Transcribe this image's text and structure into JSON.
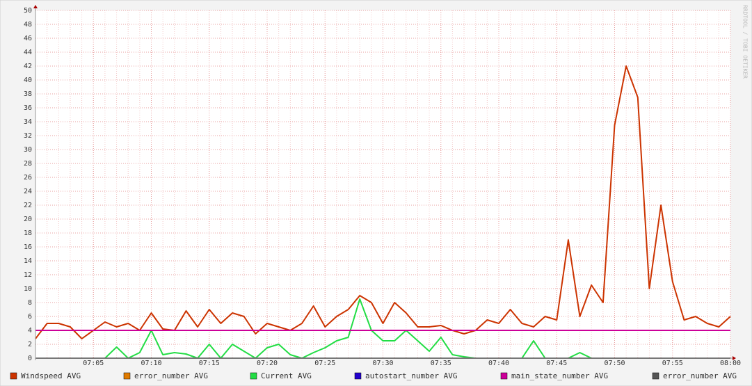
{
  "chart_data": {
    "type": "line",
    "watermark": "RRDTOOL / TOBI OETIKER",
    "x": [
      "07:00",
      "07:01",
      "07:02",
      "07:03",
      "07:04",
      "07:05",
      "07:06",
      "07:07",
      "07:08",
      "07:09",
      "07:10",
      "07:11",
      "07:12",
      "07:13",
      "07:14",
      "07:15",
      "07:16",
      "07:17",
      "07:18",
      "07:19",
      "07:20",
      "07:21",
      "07:22",
      "07:23",
      "07:24",
      "07:25",
      "07:26",
      "07:27",
      "07:28",
      "07:29",
      "07:30",
      "07:31",
      "07:32",
      "07:33",
      "07:34",
      "07:35",
      "07:36",
      "07:37",
      "07:38",
      "07:39",
      "07:40",
      "07:41",
      "07:42",
      "07:43",
      "07:44",
      "07:45",
      "07:46",
      "07:47",
      "07:48",
      "07:49",
      "07:50",
      "07:51",
      "07:52",
      "07:53",
      "07:54",
      "07:55",
      "07:56",
      "07:57",
      "07:58",
      "07:59",
      "08:00"
    ],
    "xlim": [
      "07:00",
      "08:00"
    ],
    "xticks": [
      "07:05",
      "07:10",
      "07:15",
      "07:20",
      "07:25",
      "07:30",
      "07:35",
      "07:40",
      "07:45",
      "07:50",
      "07:55",
      "08:00"
    ],
    "ylim": [
      0,
      50
    ],
    "yticks": [
      0,
      2,
      4,
      6,
      8,
      10,
      12,
      14,
      16,
      18,
      20,
      22,
      24,
      26,
      28,
      30,
      32,
      34,
      36,
      38,
      40,
      42,
      44,
      46,
      48,
      50
    ],
    "grid": true,
    "series": [
      {
        "name": "Windspeed AVG",
        "color": "#cc3300",
        "values": [
          2.8,
          5,
          5,
          4.5,
          2.8,
          4,
          5.2,
          4.5,
          5,
          4,
          6.5,
          4.2,
          4,
          6.8,
          4.5,
          7,
          5,
          6.5,
          6,
          3.5,
          5,
          4.5,
          4,
          5,
          7.5,
          4.5,
          6,
          7,
          9,
          8,
          5,
          8,
          6.5,
          4.5,
          4.5,
          4.7,
          4,
          3.5,
          4,
          5.5,
          5,
          7,
          5,
          4.5,
          6,
          5.5,
          17,
          6,
          10.5,
          8,
          33.5,
          42,
          37.5,
          10,
          22,
          11,
          5.5,
          6,
          5,
          4.5,
          6
        ]
      },
      {
        "name": "error_number AVG",
        "color": "#e07b00",
        "values": [
          0,
          0,
          0,
          0,
          0,
          0,
          0,
          0,
          0,
          0,
          0,
          0,
          0,
          0,
          0,
          0,
          0,
          0,
          0,
          0,
          0,
          0,
          0,
          0,
          0,
          0,
          0,
          0,
          0,
          0,
          0,
          0,
          0,
          0,
          0,
          0,
          0,
          0,
          0,
          0,
          0,
          0,
          0,
          0,
          0,
          0,
          0,
          0,
          0,
          0,
          0,
          0,
          0,
          0,
          0,
          0,
          0,
          0,
          0,
          0,
          0
        ]
      },
      {
        "name": "Current AVG",
        "color": "#22dd44",
        "values": [
          0,
          0,
          0,
          0,
          0,
          0,
          0,
          1.6,
          0,
          0.8,
          4,
          0.5,
          0.8,
          0.6,
          0,
          2,
          0,
          2,
          1,
          0,
          1.5,
          2,
          0.5,
          0,
          0.8,
          1.5,
          2.5,
          3,
          8.5,
          4,
          2.5,
          2.5,
          4,
          2.5,
          1,
          3,
          0.5,
          0.2,
          0,
          0,
          0,
          0,
          0,
          2.5,
          0,
          0,
          0,
          0.8,
          0,
          0,
          0,
          0,
          0,
          0,
          0,
          0,
          0,
          0,
          0,
          0,
          0
        ]
      },
      {
        "name": "autostart_number AVG",
        "color": "#2200cc",
        "values": [
          0,
          0,
          0,
          0,
          0,
          0,
          0,
          0,
          0,
          0,
          0,
          0,
          0,
          0,
          0,
          0,
          0,
          0,
          0,
          0,
          0,
          0,
          0,
          0,
          0,
          0,
          0,
          0,
          0,
          0,
          0,
          0,
          0,
          0,
          0,
          0,
          0,
          0,
          0,
          0,
          0,
          0,
          0,
          0,
          0,
          0,
          0,
          0,
          0,
          0,
          0,
          0,
          0,
          0,
          0,
          0,
          0,
          0,
          0,
          0,
          0
        ]
      },
      {
        "name": "main_state_number AVG",
        "color": "#cc0099",
        "values": [
          4,
          4,
          4,
          4,
          4,
          4,
          4,
          4,
          4,
          4,
          4,
          4,
          4,
          4,
          4,
          4,
          4,
          4,
          4,
          4,
          4,
          4,
          4,
          4,
          4,
          4,
          4,
          4,
          4,
          4,
          4,
          4,
          4,
          4,
          4,
          4,
          4,
          4,
          4,
          4,
          4,
          4,
          4,
          4,
          4,
          4,
          4,
          4,
          4,
          4,
          4,
          4,
          4,
          4,
          4,
          4,
          4,
          4,
          4,
          4,
          4
        ]
      },
      {
        "name": "error_number AVG",
        "color": "#555555",
        "values": [
          0,
          0,
          0,
          0,
          0,
          0,
          0,
          0,
          0,
          0,
          0,
          0,
          0,
          0,
          0,
          0,
          0,
          0,
          0,
          0,
          0,
          0,
          0,
          0,
          0,
          0,
          0,
          0,
          0,
          0,
          0,
          0,
          0,
          0,
          0,
          0,
          0,
          0,
          0,
          0,
          0,
          0,
          0,
          0,
          0,
          0,
          0,
          0,
          0,
          0,
          0,
          0,
          0,
          0,
          0,
          0,
          0,
          0,
          0,
          0,
          0
        ]
      }
    ]
  }
}
